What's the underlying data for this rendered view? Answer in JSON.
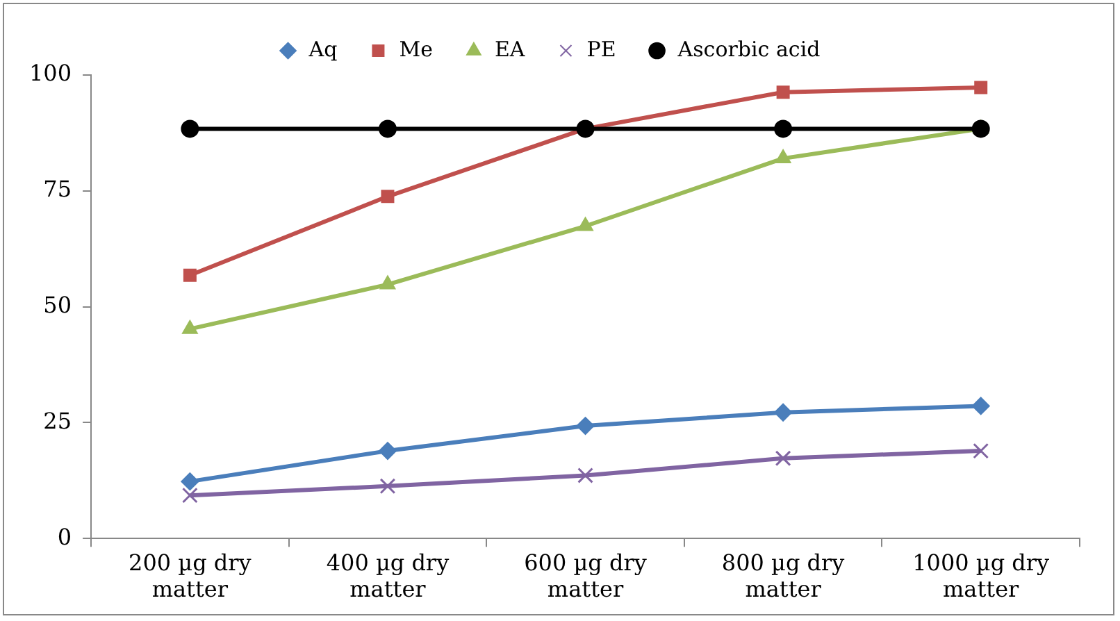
{
  "chart_data": {
    "type": "line",
    "categories": [
      "200 µg dry matter",
      "400 µg dry matter",
      "600 µg dry matter",
      "800 µg dry matter",
      "1000 µg dry matter"
    ],
    "series": [
      {
        "name": "Aq",
        "color": "#4a7ebb",
        "marker": "diamond",
        "values": [
          12.3,
          18.9,
          24.3,
          27.2,
          28.6
        ]
      },
      {
        "name": "Me",
        "color": "#c0504d",
        "marker": "square",
        "values": [
          56.8,
          73.8,
          88.4,
          96.3,
          97.3
        ]
      },
      {
        "name": "EA",
        "color": "#9bbb59",
        "marker": "triangle",
        "values": [
          45.2,
          54.8,
          67.4,
          82,
          88.4
        ]
      },
      {
        "name": "PE",
        "color": "#8064a2",
        "marker": "cross",
        "values": [
          9.3,
          11.3,
          13.6,
          17.3,
          18.9
        ]
      },
      {
        "name": "Ascorbic acid",
        "color": "#000000",
        "marker": "circle",
        "values": [
          88.4,
          88.4,
          88.4,
          88.4,
          88.4
        ]
      }
    ],
    "ylim": [
      0,
      100
    ],
    "yticks": [
      0,
      25,
      50,
      75,
      100
    ],
    "grid": false,
    "legend": "top",
    "line_style": "solid"
  }
}
